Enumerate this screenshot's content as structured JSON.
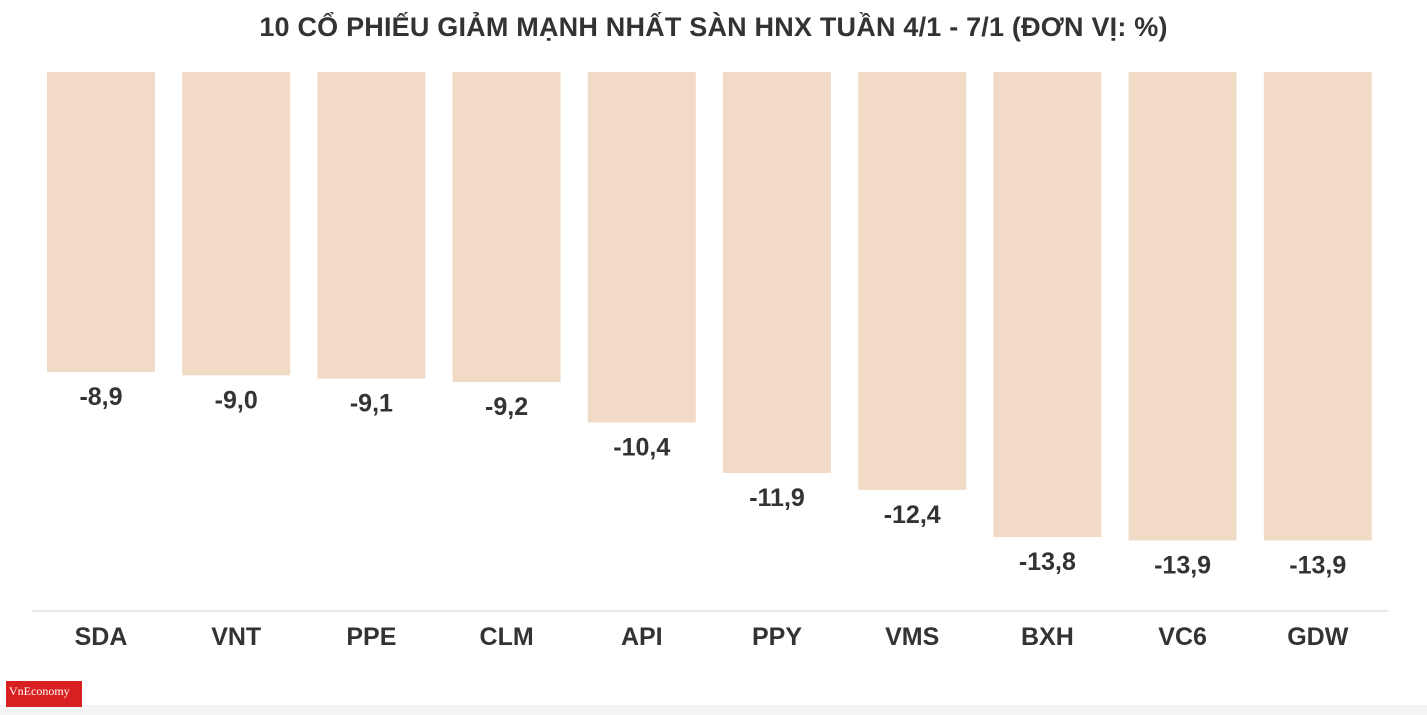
{
  "chart_data": {
    "type": "bar",
    "title": "10 CỔ PHIẾU GIẢM MẠNH NHẤT SÀN HNX TUẦN 4/1 - 7/1 (ĐƠN VỊ: %)",
    "categories": [
      "SDA",
      "VNT",
      "PPE",
      "CLM",
      "API",
      "PPY",
      "VMS",
      "BXH",
      "VC6",
      "GDW"
    ],
    "values": [
      -8.9,
      -9.0,
      -9.1,
      -9.2,
      -10.4,
      -11.9,
      -12.4,
      -13.8,
      -13.9,
      -13.9
    ],
    "value_labels": [
      "-8,9",
      "-9,0",
      "-9,1",
      "-9,2",
      "-10,4",
      "-11,9",
      "-12,4",
      "-13,8",
      "-13,9",
      "-13,9"
    ],
    "xlabel": "",
    "ylabel": "",
    "ylim": [
      -16,
      0
    ],
    "grid": false,
    "legend": "none",
    "bar_color": "#f2dbc6",
    "text_color": "#333333"
  },
  "branding": {
    "logo_text": "VnEconomy",
    "logo_color": "#d92020"
  }
}
